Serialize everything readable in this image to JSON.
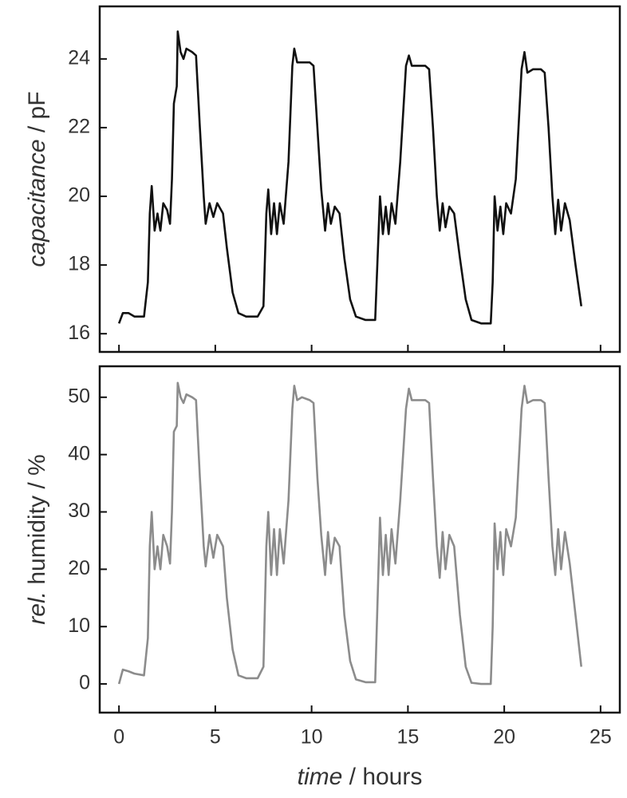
{
  "chart_data": [
    {
      "type": "line",
      "ylabel": "capacitance / pF",
      "xlim": [
        -1,
        26
      ],
      "ylim": [
        15.47,
        25.53
      ],
      "xticks": [
        0,
        5,
        10,
        15,
        20,
        25
      ],
      "yticks": [
        16,
        18,
        20,
        22,
        24
      ],
      "x": [
        0,
        0.2,
        0.5,
        0.8,
        1.3,
        1.5,
        1.6,
        1.7,
        1.85,
        2.0,
        2.15,
        2.3,
        2.5,
        2.65,
        2.75,
        2.85,
        3.0,
        3.05,
        3.2,
        3.35,
        3.5,
        3.8,
        4.0,
        4.2,
        4.4,
        4.5,
        4.7,
        4.9,
        5.1,
        5.4,
        5.6,
        5.9,
        6.2,
        6.6,
        7.2,
        7.5,
        7.65,
        7.75,
        7.9,
        8.05,
        8.2,
        8.35,
        8.55,
        8.8,
        9.0,
        9.1,
        9.25,
        9.5,
        9.9,
        10.1,
        10.3,
        10.5,
        10.7,
        10.85,
        11.0,
        11.2,
        11.45,
        11.7,
        12.0,
        12.3,
        12.8,
        13.3,
        13.55,
        13.7,
        13.85,
        14.0,
        14.15,
        14.35,
        14.6,
        14.9,
        15.05,
        15.2,
        15.5,
        15.9,
        16.1,
        16.3,
        16.5,
        16.65,
        16.8,
        16.95,
        17.15,
        17.4,
        17.7,
        18.0,
        18.3,
        18.8,
        19.3,
        19.4,
        19.5,
        19.65,
        19.8,
        19.95,
        20.1,
        20.35,
        20.6,
        20.9,
        21.05,
        21.2,
        21.5,
        21.9,
        22.1,
        22.3,
        22.5,
        22.65,
        22.8,
        22.95,
        23.15,
        23.4,
        23.7,
        24.0
      ],
      "series": [
        {
          "color": "#111111",
          "values": [
            16.3,
            16.6,
            16.6,
            16.5,
            16.5,
            17.5,
            19.5,
            20.3,
            19.0,
            19.5,
            19.0,
            19.8,
            19.6,
            19.2,
            20.5,
            22.7,
            23.2,
            24.8,
            24.2,
            24.0,
            24.3,
            24.2,
            24.1,
            22,
            20,
            19.2,
            19.8,
            19.4,
            19.8,
            19.5,
            18.5,
            17.2,
            16.6,
            16.5,
            16.5,
            16.8,
            19.5,
            20.2,
            18.9,
            19.8,
            18.9,
            19.8,
            19.2,
            21.0,
            23.8,
            24.3,
            23.9,
            23.9,
            23.9,
            23.8,
            22,
            20.2,
            19.0,
            19.8,
            19.2,
            19.7,
            19.5,
            18.2,
            17.0,
            16.5,
            16.4,
            16.4,
            20.0,
            18.9,
            19.7,
            18.9,
            19.8,
            19.2,
            21,
            23.8,
            24.1,
            23.8,
            23.8,
            23.8,
            23.7,
            22,
            20,
            19.0,
            19.8,
            19.1,
            19.7,
            19.5,
            18.2,
            17.0,
            16.4,
            16.3,
            16.3,
            17.5,
            20.0,
            19.0,
            19.7,
            18.9,
            19.8,
            19.5,
            20.5,
            23.7,
            24.2,
            23.6,
            23.7,
            23.7,
            23.6,
            22,
            20,
            18.9,
            19.9,
            19.0,
            19.8,
            19.3,
            18.0,
            16.8
          ]
        }
      ]
    },
    {
      "type": "line",
      "ylabel": "rel. humidity / %",
      "xlabel": "time / hours",
      "xlim": [
        -1,
        26
      ],
      "ylim": [
        -5,
        55.4
      ],
      "xticks": [
        0,
        5,
        10,
        15,
        20,
        25
      ],
      "yticks": [
        0,
        10,
        20,
        30,
        40,
        50
      ],
      "x": [
        0,
        0.2,
        0.5,
        0.8,
        1.3,
        1.5,
        1.6,
        1.7,
        1.85,
        2.0,
        2.15,
        2.3,
        2.5,
        2.65,
        2.75,
        2.85,
        3.0,
        3.05,
        3.2,
        3.35,
        3.5,
        3.8,
        4.0,
        4.2,
        4.4,
        4.5,
        4.7,
        4.9,
        5.1,
        5.4,
        5.6,
        5.9,
        6.2,
        6.6,
        7.2,
        7.5,
        7.65,
        7.75,
        7.9,
        8.05,
        8.2,
        8.35,
        8.55,
        8.8,
        9.0,
        9.1,
        9.25,
        9.5,
        9.9,
        10.1,
        10.3,
        10.5,
        10.7,
        10.85,
        11.0,
        11.2,
        11.45,
        11.7,
        12.0,
        12.3,
        12.8,
        13.3,
        13.55,
        13.7,
        13.85,
        14.0,
        14.15,
        14.35,
        14.6,
        14.9,
        15.05,
        15.2,
        15.5,
        15.9,
        16.1,
        16.3,
        16.5,
        16.65,
        16.8,
        16.95,
        17.15,
        17.4,
        17.7,
        18.0,
        18.3,
        18.8,
        19.3,
        19.4,
        19.5,
        19.65,
        19.8,
        19.95,
        20.1,
        20.35,
        20.6,
        20.9,
        21.05,
        21.2,
        21.5,
        21.9,
        22.1,
        22.3,
        22.5,
        22.65,
        22.8,
        22.95,
        23.15,
        23.4,
        23.7,
        24.0
      ],
      "series": [
        {
          "color": "#8c8c8c",
          "values": [
            0,
            2.5,
            2.2,
            1.8,
            1.5,
            8,
            24,
            30,
            20,
            24,
            20,
            26,
            24,
            21,
            30,
            44,
            45,
            52.5,
            50,
            49,
            50.5,
            50,
            49.5,
            36,
            24,
            20.5,
            26,
            22,
            26,
            24,
            15,
            6,
            1.5,
            1,
            1,
            3,
            24,
            30,
            19,
            27,
            19,
            27,
            21,
            32,
            48,
            52,
            49.5,
            50,
            49.5,
            49,
            36,
            26,
            19,
            26.5,
            21,
            25.5,
            24,
            12,
            4,
            0.8,
            0.3,
            0.3,
            29,
            19,
            26,
            19,
            27,
            21,
            32,
            48,
            51.5,
            49.5,
            49.5,
            49.5,
            49,
            36,
            24,
            18.5,
            26.5,
            20,
            26,
            24,
            12,
            3,
            0.2,
            0,
            0,
            10,
            28,
            20,
            26.5,
            19,
            27,
            24,
            29,
            48,
            52,
            49,
            49.5,
            49.5,
            49,
            36,
            24,
            19,
            27,
            20,
            26.5,
            21,
            12,
            3
          ]
        }
      ]
    }
  ]
}
